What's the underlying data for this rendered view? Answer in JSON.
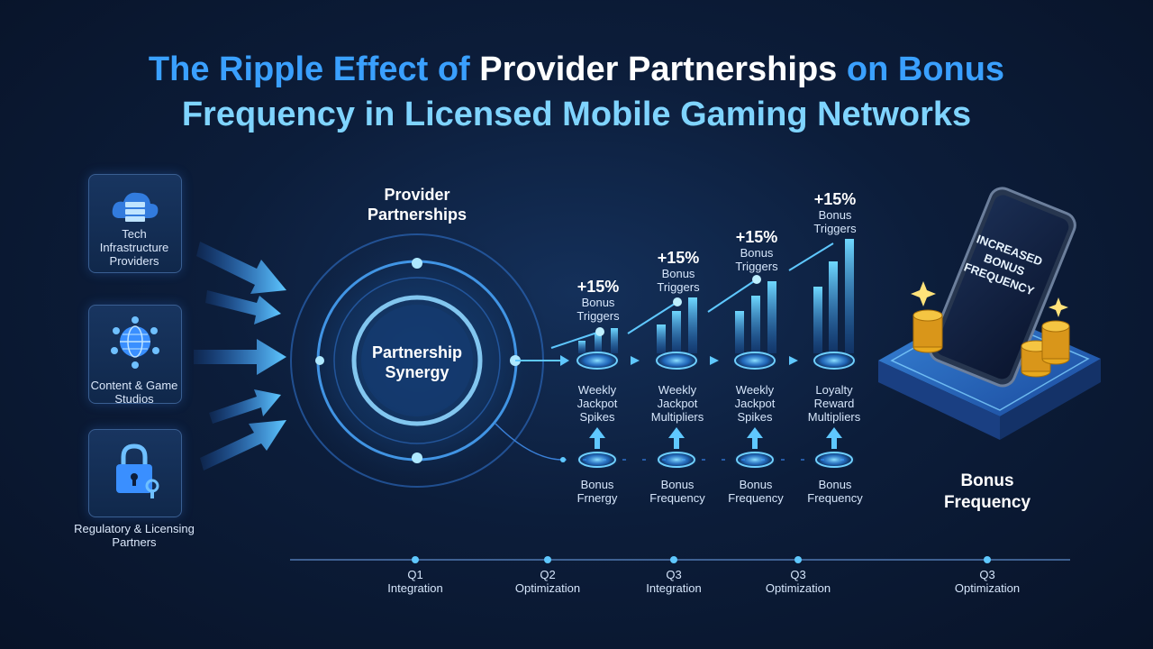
{
  "title": {
    "part1": "The Ripple Effect of ",
    "part2": "Provider Partnerships",
    "part3": " on Bonus",
    "part4": "Frequency in Licensed Mobile Gaming Networks"
  },
  "sources": [
    {
      "label": "Tech Infrastructure Providers",
      "icon": "cloud-server-icon"
    },
    {
      "label": "Content & Game Studios",
      "icon": "globe-network-icon"
    },
    {
      "label": "Regulatory & Licensing Partners",
      "icon": "lock-key-icon"
    }
  ],
  "hub": {
    "heading": "Provider Partnerships",
    "center": "Partnership Synergy"
  },
  "stages": [
    {
      "pct": "+15%",
      "trigger": "Bonus Triggers",
      "event": "Weekly Jackpot Spikes",
      "bottom": "Bonus Frnergy"
    },
    {
      "pct": "+15%",
      "trigger": "Bonus Triggers",
      "event": "Weekly Jackpot Multipliers",
      "bottom": "Bonus Frequency"
    },
    {
      "pct": "+15%",
      "trigger": "Bonus Triggers",
      "event": "Weekly Jackpot Spikes",
      "bottom": "Bonus Frequency"
    },
    {
      "pct": "+15%",
      "trigger": "Bonus Triggers",
      "event": "Loyalty Reward Multipliers",
      "bottom": "Bonus Frequency"
    }
  ],
  "outcome": {
    "screen_text": "INCREASED BONUS FREQUENCY",
    "label": "Bonus Frequency"
  },
  "timeline": [
    {
      "quarter": "Q1",
      "phase": "Integration"
    },
    {
      "quarter": "Q2",
      "phase": "Optimization"
    },
    {
      "quarter": "Q3",
      "phase": "Integration"
    },
    {
      "quarter": "Q3",
      "phase": "Optimization"
    },
    {
      "quarter": "Q3",
      "phase": "Optimization"
    }
  ],
  "colors": {
    "accent": "#3aa0ff",
    "glow": "#5fc8ff",
    "background": "#0c1d3a"
  }
}
